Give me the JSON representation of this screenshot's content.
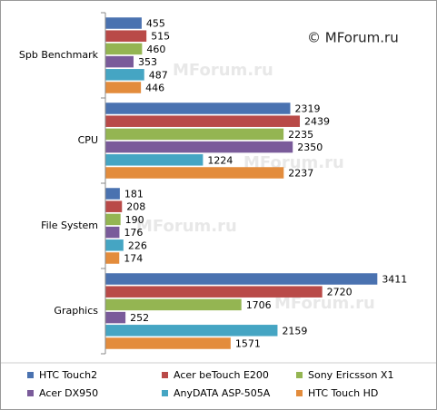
{
  "chart_data": {
    "type": "hbar",
    "copyright": "© MForum.ru",
    "watermark": "MForum.ru",
    "categories": [
      "Spb Benchmark",
      "CPU",
      "File System",
      "Graphics"
    ],
    "series": [
      {
        "name": "HTC Touch2",
        "color": "#4a72b0",
        "values": [
          455,
          2319,
          181,
          3411
        ]
      },
      {
        "name": "Acer beTouch E200",
        "color": "#b94a48",
        "values": [
          515,
          2439,
          208,
          2720
        ]
      },
      {
        "name": "Sony Ericsson X1",
        "color": "#94b552",
        "values": [
          460,
          2235,
          190,
          1706
        ]
      },
      {
        "name": "Acer DX950",
        "color": "#7a5b9a",
        "values": [
          353,
          2350,
          176,
          252
        ]
      },
      {
        "name": "AnyDATA ASP-505A",
        "color": "#45a5c3",
        "values": [
          487,
          1224,
          226,
          2159
        ]
      },
      {
        "name": "HTC Touch HD",
        "color": "#e38c3c",
        "values": [
          446,
          2237,
          174,
          1571
        ]
      }
    ],
    "xlim": [
      0,
      4000
    ],
    "legend": "bottom"
  }
}
